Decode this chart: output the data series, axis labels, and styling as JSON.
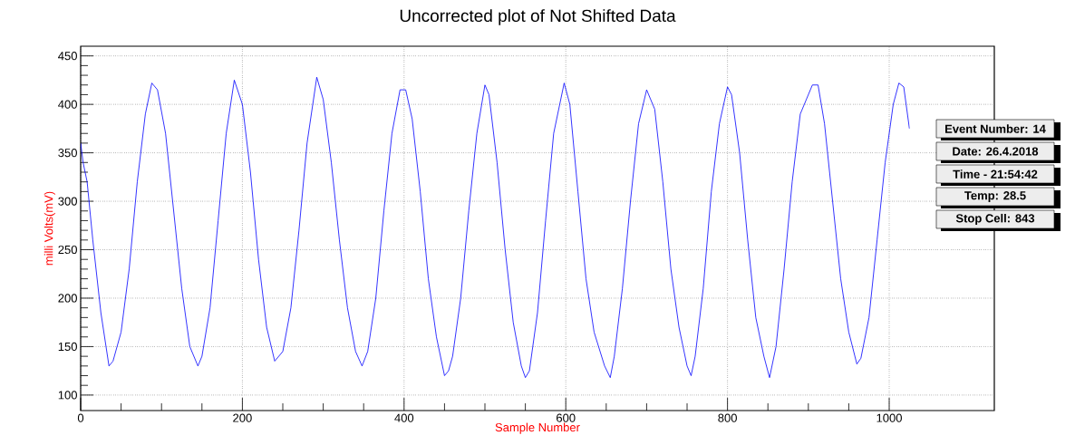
{
  "chart_data": {
    "type": "line",
    "title": "Uncorrected plot of Not Shifted Data",
    "xlabel": "Sample Number",
    "ylabel": "milli Volts(mV)",
    "annotations": [
      "Event Number: 14",
      "Date: 26.4.2018",
      "Time -  21:54:42",
      "Temp: 28.5",
      "Stop Cell: 843"
    ],
    "x": [
      0,
      3,
      8,
      15,
      25,
      35,
      40,
      50,
      60,
      70,
      80,
      88,
      95,
      105,
      115,
      125,
      135,
      145,
      150,
      160,
      170,
      180,
      190,
      200,
      210,
      220,
      230,
      240,
      250,
      260,
      270,
      280,
      292,
      300,
      310,
      320,
      330,
      340,
      348,
      355,
      365,
      375,
      385,
      395,
      402,
      410,
      420,
      430,
      440,
      450,
      455,
      460,
      470,
      480,
      490,
      500,
      505,
      515,
      525,
      535,
      545,
      550,
      555,
      565,
      575,
      585,
      598,
      605,
      615,
      625,
      635,
      648,
      655,
      660,
      670,
      680,
      690,
      700,
      710,
      720,
      730,
      740,
      750,
      755,
      760,
      770,
      780,
      790,
      800,
      805,
      815,
      825,
      835,
      845,
      852,
      860,
      870,
      880,
      890,
      905,
      912,
      920,
      930,
      940,
      950,
      960,
      965,
      975,
      985,
      995,
      1005,
      1012,
      1018,
      1025
    ],
    "series": [
      {
        "color": "#0000ff",
        "values": [
          360,
          340,
          320,
          260,
          185,
          130,
          135,
          165,
          230,
          320,
          390,
          422,
          415,
          370,
          290,
          210,
          150,
          130,
          140,
          190,
          280,
          370,
          425,
          400,
          330,
          240,
          170,
          135,
          145,
          190,
          270,
          360,
          428,
          405,
          340,
          260,
          190,
          145,
          130,
          145,
          200,
          290,
          370,
          415,
          415,
          385,
          310,
          220,
          160,
          120,
          125,
          140,
          200,
          290,
          370,
          420,
          410,
          340,
          250,
          175,
          130,
          118,
          125,
          185,
          280,
          370,
          422,
          400,
          310,
          220,
          165,
          130,
          118,
          140,
          210,
          300,
          380,
          415,
          395,
          320,
          230,
          170,
          130,
          120,
          140,
          210,
          310,
          380,
          418,
          410,
          350,
          260,
          180,
          140,
          118,
          150,
          230,
          320,
          390,
          420,
          420,
          380,
          300,
          220,
          165,
          132,
          138,
          180,
          260,
          340,
          400,
          422,
          418,
          375
        ]
      }
    ],
    "xlim": [
      0,
      1130
    ],
    "ylim": [
      84,
      460
    ],
    "xticks": [
      0,
      200,
      400,
      600,
      800,
      1000
    ],
    "yticks": [
      100,
      150,
      200,
      250,
      300,
      350,
      400,
      450
    ],
    "grid": true,
    "marker": "none",
    "line_style": "solid"
  }
}
